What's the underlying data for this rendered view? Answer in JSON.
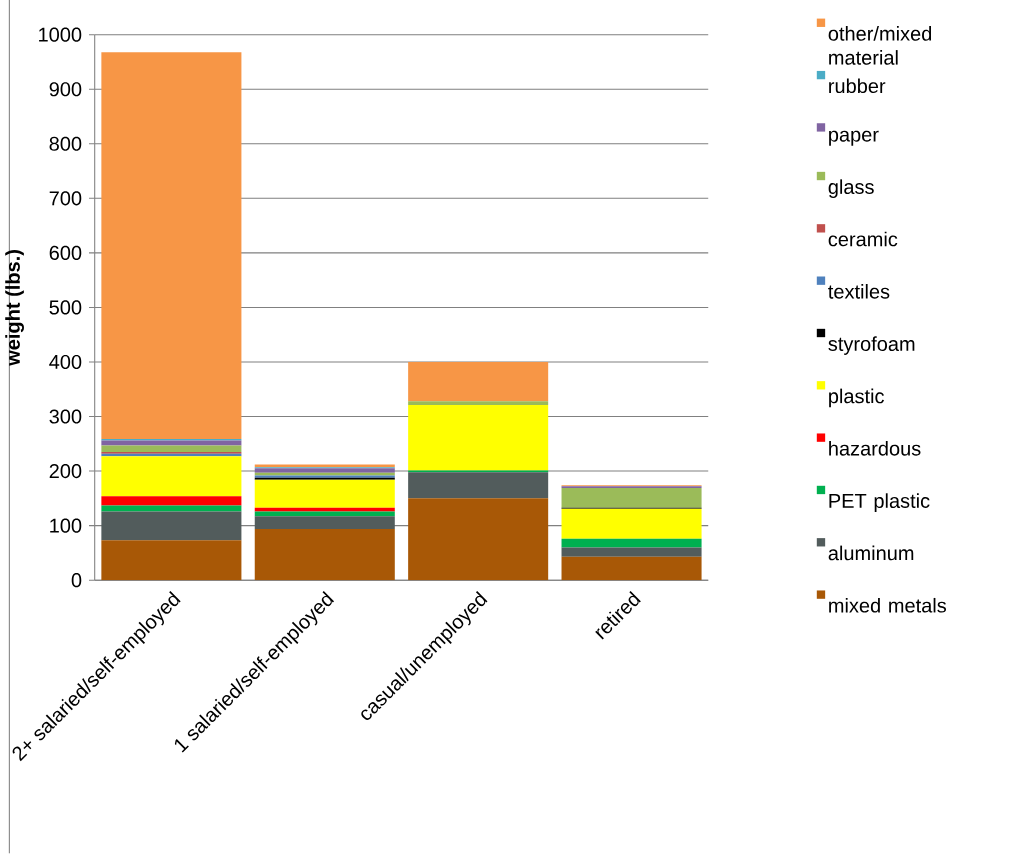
{
  "chart_data": {
    "type": "bar",
    "stacked": true,
    "ylabel": "weight (lbs.)",
    "categories": [
      "2+ salaried/self-employed",
      "1 salaried/self-employed",
      "casual/unemployed",
      "retired"
    ],
    "ylim": [
      0,
      1000
    ],
    "yticks": [
      0,
      100,
      200,
      300,
      400,
      500,
      600,
      700,
      800,
      900,
      1000
    ],
    "grid": "y",
    "legend": "right",
    "series": [
      {
        "name": "mixed metals",
        "color": "#a85806",
        "values": [
          73,
          94,
          150,
          43
        ]
      },
      {
        "name": "aluminum",
        "color": "#525c5c",
        "values": [
          53,
          23,
          48,
          17
        ]
      },
      {
        "name": "PET plastic",
        "color": "#00b050",
        "values": [
          11,
          9,
          3,
          16
        ]
      },
      {
        "name": "hazardous",
        "color": "#ff0000",
        "values": [
          17,
          7,
          0,
          0
        ]
      },
      {
        "name": "plastic",
        "color": "#ffff00",
        "values": [
          73,
          51,
          120,
          55
        ]
      },
      {
        "name": "styrofoam",
        "color": "#000000",
        "values": [
          null,
          4,
          0,
          2
        ]
      },
      {
        "name": "textiles",
        "color": "#4f81bd",
        "values": [
          5,
          4,
          0,
          0
        ]
      },
      {
        "name": "ceramic",
        "color": "#c0504d",
        "values": [
          3,
          0,
          0,
          0
        ]
      },
      {
        "name": "glass",
        "color": "#9bbb59",
        "values": [
          12,
          5,
          7,
          36
        ]
      },
      {
        "name": "paper",
        "color": "#8064a2",
        "values": [
          9,
          8,
          0,
          3
        ]
      },
      {
        "name": "rubber",
        "color": "#4bacc6",
        "values": [
          3,
          2,
          0,
          0
        ]
      },
      {
        "name": "other/mixed material",
        "color": "#f79646",
        "values": [
          709,
          5,
          72,
          2
        ]
      }
    ]
  }
}
